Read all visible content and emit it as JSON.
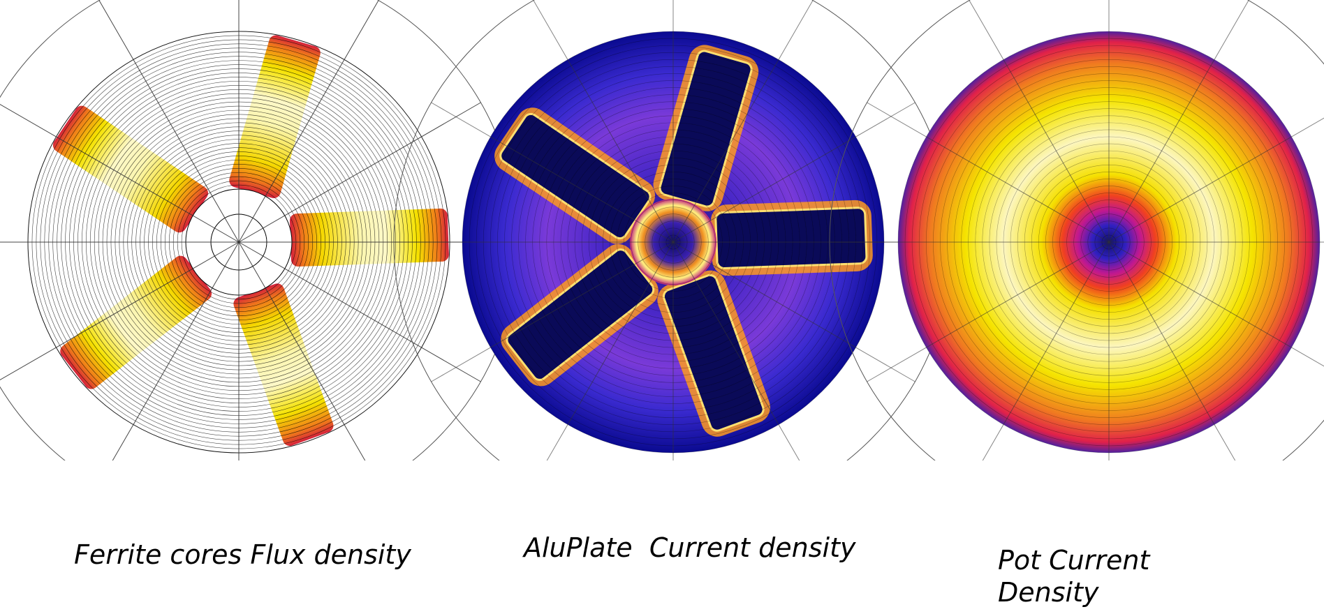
{
  "captions": [
    "Ferrite cores Flux density",
    "AluPlate  Current density",
    "Pot Current Density"
  ]
}
